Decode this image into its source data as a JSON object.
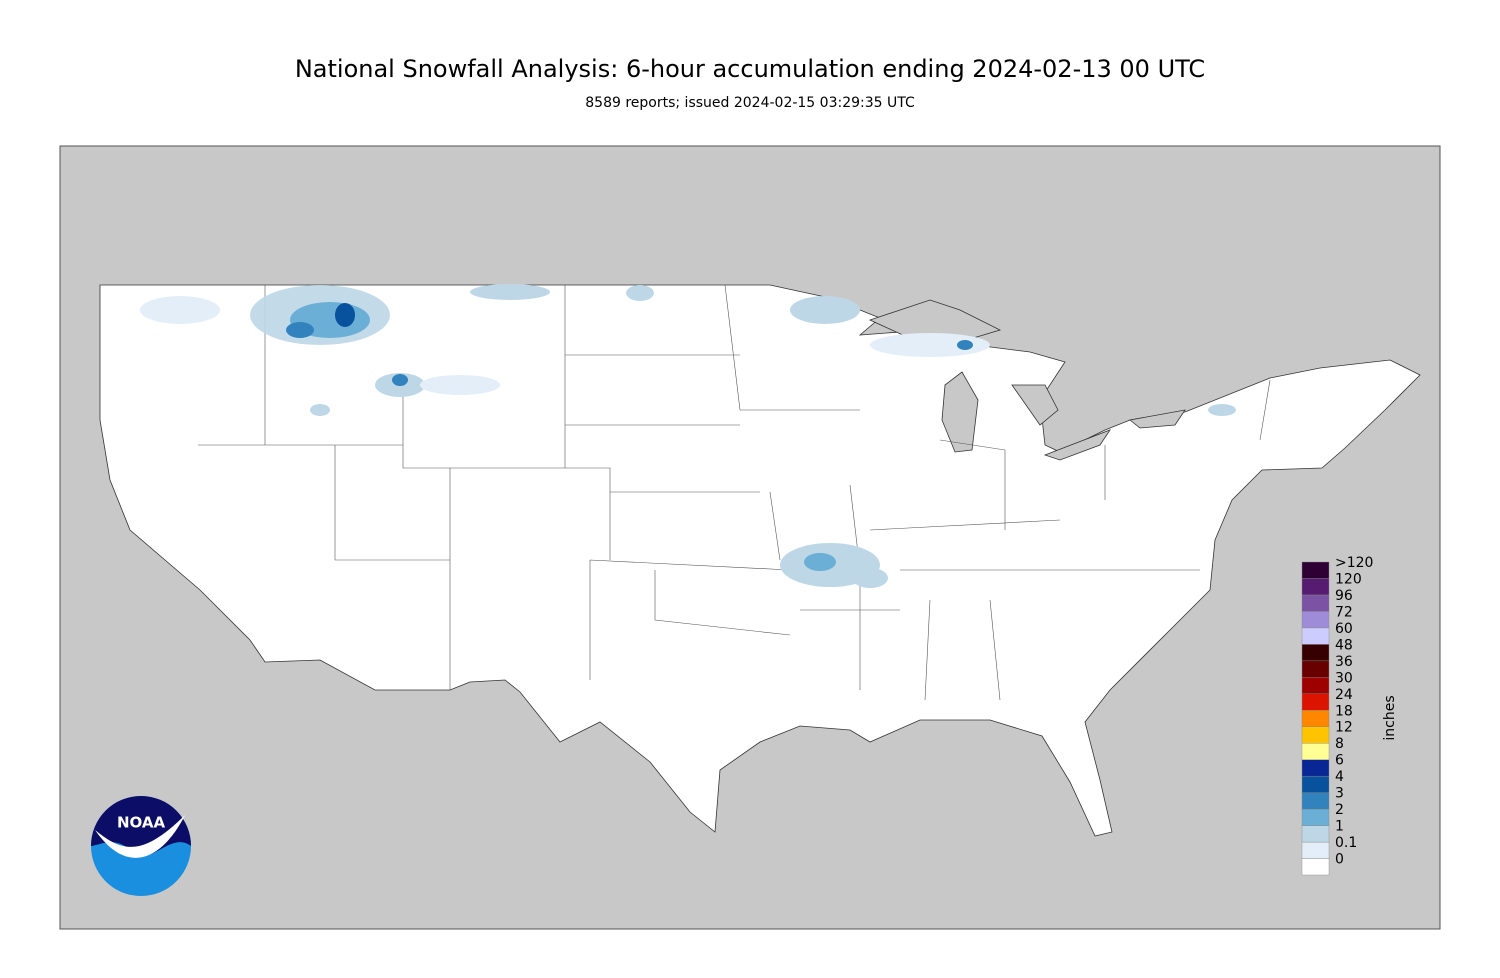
{
  "header": {
    "title": "National Snowfall Analysis: 6-hour accumulation ending 2024-02-13 00 UTC",
    "subtitle": "8589 reports; issued 2024-02-15 03:29:35 UTC"
  },
  "logo": {
    "text": "NOAA"
  },
  "legend": {
    "unit": "inches",
    "items": [
      {
        "label": "0",
        "color": "#ffffff"
      },
      {
        "label": "0.1",
        "color": "#e4eef9"
      },
      {
        "label": "1",
        "color": "#bdd7e7"
      },
      {
        "label": "2",
        "color": "#6baed6"
      },
      {
        "label": "3",
        "color": "#3182bd"
      },
      {
        "label": "4",
        "color": "#08519c"
      },
      {
        "label": "6",
        "color": "#082694"
      },
      {
        "label": "8",
        "color": "#ffff96"
      },
      {
        "label": "12",
        "color": "#ffc400"
      },
      {
        "label": "18",
        "color": "#ff8700"
      },
      {
        "label": "24",
        "color": "#db1400"
      },
      {
        "label": "30",
        "color": "#9e0000"
      },
      {
        "label": "36",
        "color": "#690000"
      },
      {
        "label": "48",
        "color": "#360000"
      },
      {
        "label": "60",
        "color": "#ccccff"
      },
      {
        "label": "72",
        "color": "#9f8cd8"
      },
      {
        "label": "96",
        "color": "#7c52a5"
      },
      {
        "label": "120",
        "color": "#561c72"
      },
      {
        "label": ">120",
        "color": "#2e0033"
      }
    ]
  }
}
